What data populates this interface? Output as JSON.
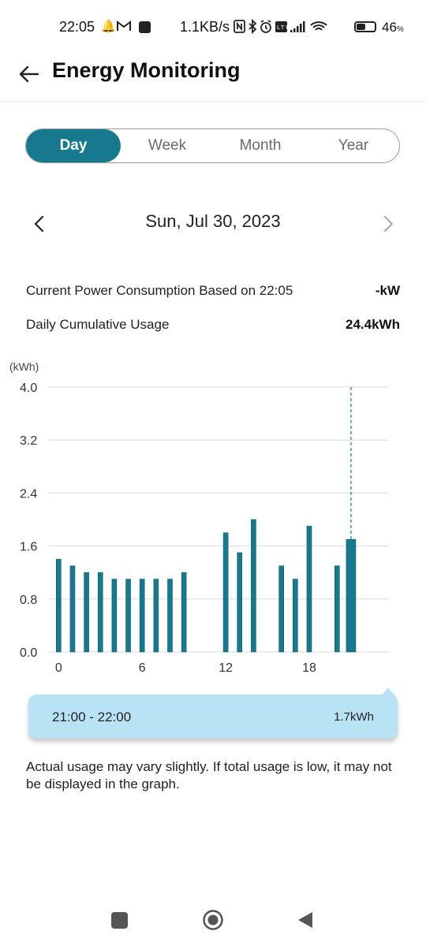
{
  "status_bar": {
    "time": "22:05",
    "net_speed": "1.1KB/s",
    "battery_level": "46",
    "battery_percent_sign": "%",
    "icons": [
      "bell-icon",
      "gmail-icon",
      "app-square-icon",
      "nfc-icon",
      "bluetooth-icon",
      "alarm-icon",
      "volte-icon",
      "signal-icon",
      "wifi-icon",
      "battery-icon"
    ]
  },
  "header": {
    "title": "Energy Monitoring"
  },
  "period_tabs": [
    {
      "label": "Day",
      "active": true
    },
    {
      "label": "Week",
      "active": false
    },
    {
      "label": "Month",
      "active": false
    },
    {
      "label": "Year",
      "active": false
    }
  ],
  "date": {
    "label": "Sun, Jul 30, 2023"
  },
  "stats": {
    "current_label": "Current Power Consumption Based on 22:05",
    "current_value": "-kW",
    "daily_label": "Daily Cumulative Usage",
    "daily_value": "24.4kWh"
  },
  "chart_data": {
    "type": "bar",
    "ylabel": "(kWh)",
    "ylim": [
      0,
      4.0
    ],
    "y_ticks": [
      "4.0",
      "3.2",
      "2.4",
      "1.6",
      "0.8",
      "0.0"
    ],
    "x_tick_labels": [
      "0",
      "6",
      "12",
      "18"
    ],
    "x_tick_hours": [
      0,
      6,
      12,
      18
    ],
    "hours": [
      0,
      1,
      2,
      3,
      4,
      5,
      6,
      7,
      8,
      9,
      10,
      11,
      12,
      13,
      14,
      15,
      16,
      17,
      18,
      19,
      20,
      21
    ],
    "values": [
      1.4,
      1.3,
      1.2,
      1.2,
      1.1,
      1.1,
      1.1,
      1.1,
      1.1,
      1.2,
      null,
      null,
      1.8,
      1.5,
      2.0,
      null,
      1.3,
      1.1,
      1.9,
      null,
      1.3,
      1.7
    ],
    "selected_hour": 21,
    "grid": true,
    "bar_color": "#16798e"
  },
  "tooltip": {
    "time_range": "21:00 - 22:00",
    "value": "1.7kWh",
    "color": "#b7e3f4"
  },
  "note": "Actual usage may vary slightly. If total usage is low, it may not be displayed in the graph."
}
